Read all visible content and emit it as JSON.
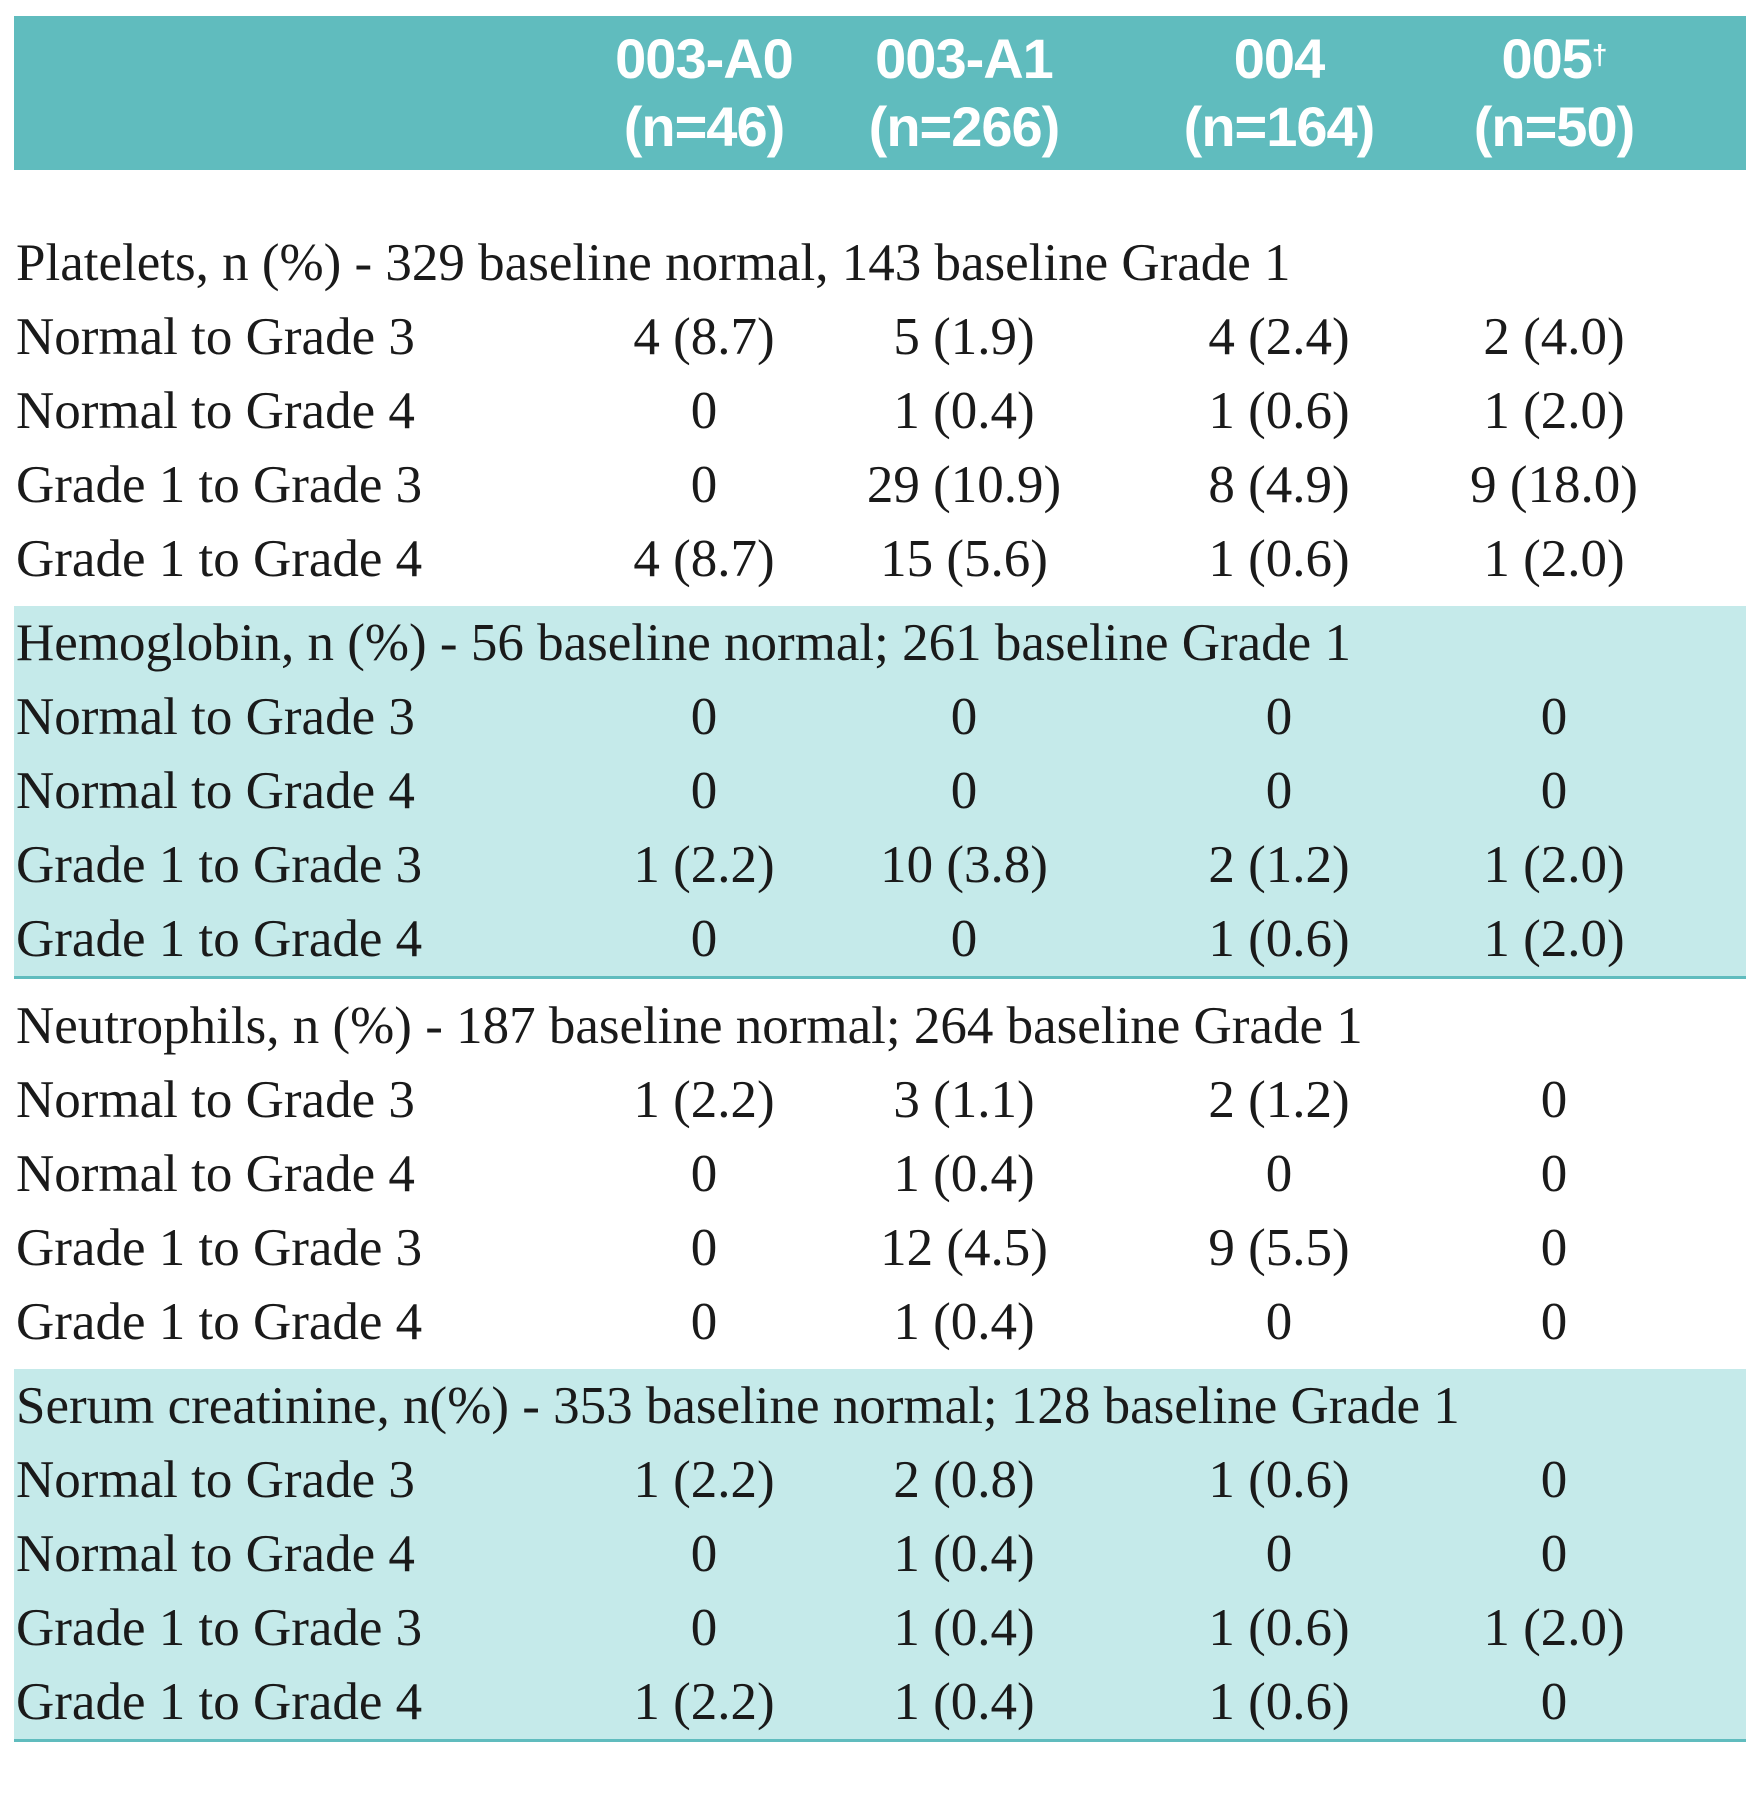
{
  "columns": [
    {
      "id": "003-A0",
      "n": "(n=46)",
      "mark": ""
    },
    {
      "id": "003-A1",
      "n": "(n=266)",
      "mark": ""
    },
    {
      "id": "004",
      "n": "(n=164)",
      "mark": ""
    },
    {
      "id": "005",
      "n": "(n=50)",
      "mark": "†"
    }
  ],
  "sections": [
    {
      "title": "Platelets, n (%)  - 329 baseline normal, 143 baseline Grade 1",
      "shaded": false,
      "rows": [
        {
          "label": "Normal to Grade 3",
          "values": [
            "4 (8.7)",
            "5 (1.9)",
            "4 (2.4)",
            "2 (4.0)"
          ]
        },
        {
          "label": "Normal to Grade 4",
          "values": [
            "0",
            "1 (0.4)",
            "1 (0.6)",
            "1 (2.0)"
          ]
        },
        {
          "label": "Grade 1 to Grade 3",
          "values": [
            "0",
            "29 (10.9)",
            "8 (4.9)",
            "9 (18.0)"
          ]
        },
        {
          "label": "Grade 1 to Grade 4",
          "values": [
            "4 (8.7)",
            "15 (5.6)",
            "1 (0.6)",
            "1 (2.0)"
          ]
        }
      ]
    },
    {
      "title": "Hemoglobin, n (%)  - 56 baseline normal; 261 baseline Grade 1",
      "shaded": true,
      "rows": [
        {
          "label": "Normal to Grade 3",
          "values": [
            "0",
            "0",
            "0",
            "0"
          ]
        },
        {
          "label": "Normal to Grade 4",
          "values": [
            "0",
            "0",
            "0",
            "0"
          ]
        },
        {
          "label": "Grade 1 to Grade 3",
          "values": [
            "1 (2.2)",
            "10 (3.8)",
            "2 (1.2)",
            "1 (2.0)"
          ]
        },
        {
          "label": "Grade 1 to Grade 4",
          "values": [
            "0",
            "0",
            "1 (0.6)",
            "1 (2.0)"
          ]
        }
      ]
    },
    {
      "title": "Neutrophils, n (%)  - 187 baseline normal; 264 baseline Grade 1",
      "shaded": false,
      "rows": [
        {
          "label": "Normal to Grade 3",
          "values": [
            "1 (2.2)",
            "3 (1.1)",
            "2 (1.2)",
            "0"
          ]
        },
        {
          "label": "Normal to Grade 4",
          "values": [
            "0",
            "1 (0.4)",
            "0",
            "0"
          ]
        },
        {
          "label": "Grade 1 to Grade 3",
          "values": [
            "0",
            "12 (4.5)",
            "9 (5.5)",
            "0"
          ]
        },
        {
          "label": "Grade 1 to Grade 4",
          "values": [
            "0",
            "1 (0.4)",
            "0",
            "0"
          ]
        }
      ]
    },
    {
      "title": "Serum creatinine, n(%)  - 353 baseline normal; 128 baseline Grade 1",
      "shaded": true,
      "rows": [
        {
          "label": "Normal to Grade 3",
          "values": [
            "1 (2.2)",
            "2 (0.8)",
            "1 (0.6)",
            "0"
          ]
        },
        {
          "label": "Normal to Grade 4",
          "values": [
            "0",
            "1 (0.4)",
            "0",
            "0"
          ]
        },
        {
          "label": "Grade 1 to Grade 3",
          "values": [
            "0",
            "1 (0.4)",
            "1 (0.6)",
            "1 (2.0)"
          ]
        },
        {
          "label": "Grade 1 to Grade 4",
          "values": [
            "1 (2.2)",
            "1 (0.4)",
            "1 (0.6)",
            "0"
          ]
        }
      ]
    }
  ]
}
